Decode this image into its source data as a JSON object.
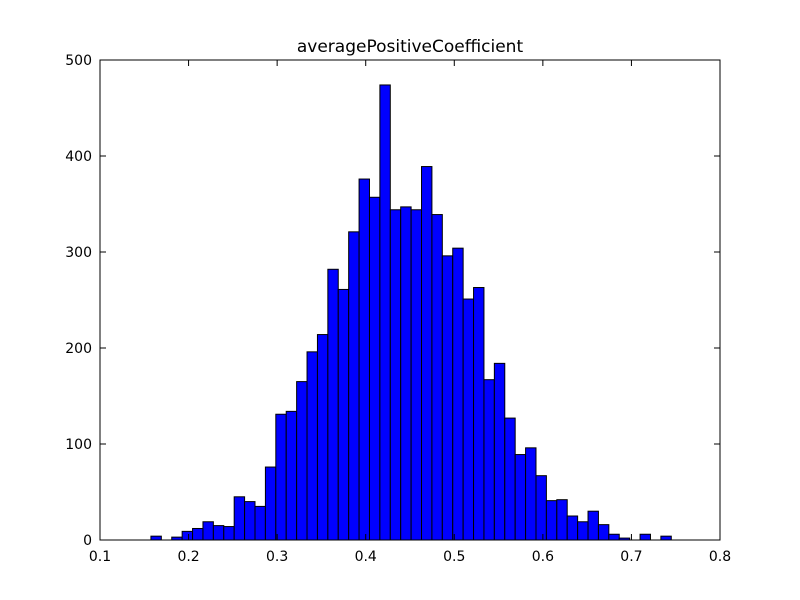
{
  "chart_data": {
    "type": "bar",
    "subtype": "histogram",
    "title": "averagePositiveCoefficient",
    "xlabel": "",
    "ylabel": "",
    "xlim": [
      0.1,
      0.8
    ],
    "ylim": [
      0,
      500
    ],
    "xticks": [
      "0.1",
      "0.2",
      "0.3",
      "0.4",
      "0.5",
      "0.6",
      "0.7",
      "0.8"
    ],
    "yticks": [
      "0",
      "100",
      "200",
      "300",
      "400",
      "500"
    ],
    "bin_start": 0.1575,
    "bin_width": 0.01175,
    "values": [
      4,
      0,
      3,
      9,
      12,
      19,
      15,
      14,
      45,
      40,
      35,
      76,
      131,
      134,
      165,
      196,
      214,
      282,
      261,
      321,
      376,
      357,
      474,
      344,
      347,
      344,
      389,
      339,
      296,
      304,
      251,
      263,
      167,
      184,
      127,
      89,
      96,
      67,
      41,
      42,
      25,
      19,
      30,
      16,
      6,
      2,
      0,
      6,
      0,
      4
    ],
    "bar_color": "#0000ff",
    "edge_color": "#000000"
  }
}
